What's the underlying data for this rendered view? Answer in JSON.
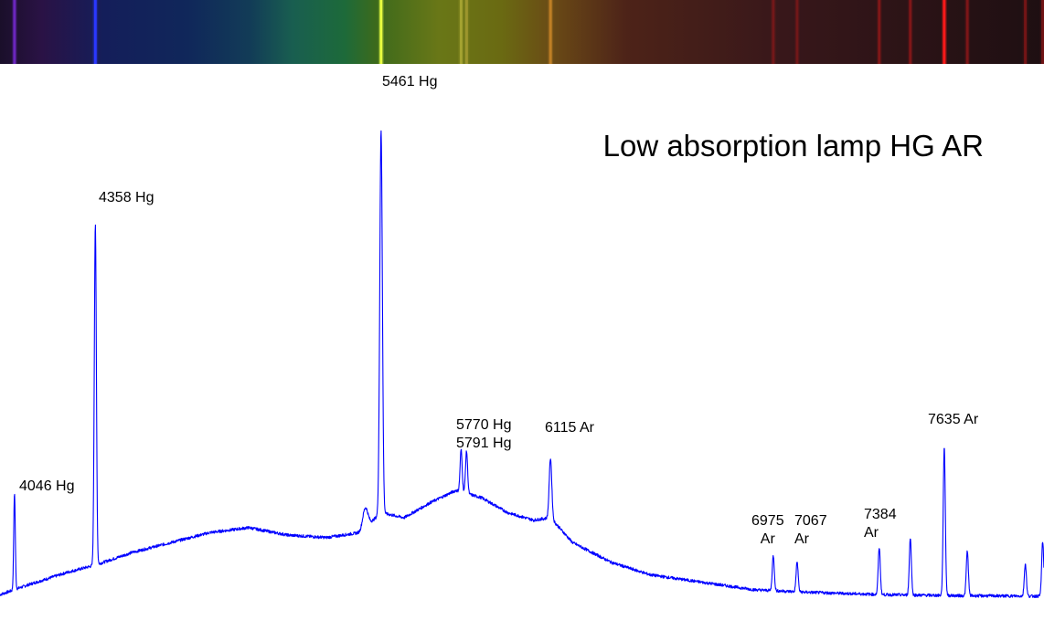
{
  "spectrum_strip": {
    "gradient_stops": [
      {
        "position": 0.0,
        "color": "#1a0f2a"
      },
      {
        "position": 0.04,
        "color": "#2a1245"
      },
      {
        "position": 0.1,
        "color": "#141e5a"
      },
      {
        "position": 0.18,
        "color": "#10275a"
      },
      {
        "position": 0.24,
        "color": "#123c57"
      },
      {
        "position": 0.28,
        "color": "#195e50"
      },
      {
        "position": 0.33,
        "color": "#1d6a3a"
      },
      {
        "position": 0.36,
        "color": "#3c6a1c"
      },
      {
        "position": 0.42,
        "color": "#697717"
      },
      {
        "position": 0.48,
        "color": "#6a6a12"
      },
      {
        "position": 0.53,
        "color": "#6a4a16"
      },
      {
        "position": 0.6,
        "color": "#4d2318"
      },
      {
        "position": 0.75,
        "color": "#38171a"
      },
      {
        "position": 1.0,
        "color": "#1e0f12"
      }
    ],
    "lines": [
      {
        "wavelength": 4046,
        "color": "#7a2bd8",
        "intensity": 0.8
      },
      {
        "wavelength": 4358,
        "color": "#2a38ff",
        "intensity": 1.0
      },
      {
        "wavelength": 5461,
        "color": "#e8ff40",
        "intensity": 1.0
      },
      {
        "wavelength": 5770,
        "color": "#b8b43a",
        "intensity": 0.7
      },
      {
        "wavelength": 5791,
        "color": "#b8a83a",
        "intensity": 0.6
      },
      {
        "wavelength": 6115,
        "color": "#d08a28",
        "intensity": 0.8
      },
      {
        "wavelength": 6975,
        "color": "#a81818",
        "intensity": 0.45
      },
      {
        "wavelength": 7067,
        "color": "#a81818",
        "intensity": 0.45
      },
      {
        "wavelength": 7384,
        "color": "#c01a1a",
        "intensity": 0.5
      },
      {
        "wavelength": 7504,
        "color": "#c01a1a",
        "intensity": 0.5
      },
      {
        "wavelength": 7635,
        "color": "#ff1a1a",
        "intensity": 1.0
      },
      {
        "wavelength": 7724,
        "color": "#c01a1a",
        "intensity": 0.5
      },
      {
        "wavelength": 7948,
        "color": "#c01a1a",
        "intensity": 0.45
      },
      {
        "wavelength": 8015,
        "color": "#c01a1a",
        "intensity": 0.45
      }
    ]
  },
  "chart_data": {
    "type": "line",
    "title": "Low absorption lamp HG AR",
    "xlabel": "",
    "ylabel": "",
    "xlim": [
      3990,
      8020
    ],
    "ylim": [
      0,
      1.0
    ],
    "grid": false,
    "line_color": "#0000ff",
    "series": [
      {
        "continuum": [
          [
            3990,
            0.005
          ],
          [
            4100,
            0.025
          ],
          [
            4250,
            0.05
          ],
          [
            4360,
            0.065
          ],
          [
            4500,
            0.09
          ],
          [
            4650,
            0.11
          ],
          [
            4800,
            0.13
          ],
          [
            4950,
            0.14
          ],
          [
            5100,
            0.125
          ],
          [
            5250,
            0.12
          ],
          [
            5380,
            0.13
          ],
          [
            5461,
            0.17
          ],
          [
            5550,
            0.16
          ],
          [
            5650,
            0.19
          ],
          [
            5750,
            0.215
          ],
          [
            5850,
            0.2
          ],
          [
            5950,
            0.17
          ],
          [
            6050,
            0.155
          ],
          [
            6115,
            0.16
          ],
          [
            6200,
            0.11
          ],
          [
            6350,
            0.07
          ],
          [
            6500,
            0.045
          ],
          [
            6700,
            0.03
          ],
          [
            6900,
            0.015
          ],
          [
            7100,
            0.01
          ],
          [
            7400,
            0.005
          ],
          [
            7700,
            0.003
          ],
          [
            8020,
            0.002
          ]
        ],
        "peaks": [
          {
            "wavelength": 4046,
            "height": 0.195,
            "width": 3
          },
          {
            "wavelength": 4358,
            "height": 0.685,
            "width": 4
          },
          {
            "wavelength": 5400,
            "height": 0.04,
            "width": 10
          },
          {
            "wavelength": 5461,
            "height": 0.77,
            "width": 5
          },
          {
            "wavelength": 5770,
            "height": 0.085,
            "width": 4
          },
          {
            "wavelength": 5791,
            "height": 0.085,
            "width": 4
          },
          {
            "wavelength": 6115,
            "height": 0.12,
            "width": 5
          },
          {
            "wavelength": 6975,
            "height": 0.07,
            "width": 4
          },
          {
            "wavelength": 7067,
            "height": 0.06,
            "width": 4
          },
          {
            "wavelength": 7384,
            "height": 0.095,
            "width": 4
          },
          {
            "wavelength": 7504,
            "height": 0.115,
            "width": 4
          },
          {
            "wavelength": 7635,
            "height": 0.3,
            "width": 4
          },
          {
            "wavelength": 7724,
            "height": 0.09,
            "width": 4
          },
          {
            "wavelength": 7948,
            "height": 0.065,
            "width": 4
          },
          {
            "wavelength": 8015,
            "height": 0.11,
            "width": 4
          }
        ]
      }
    ],
    "annotations": [
      {
        "id": "4046",
        "lines": [
          "4046 Hg"
        ],
        "wavelength": 4046
      },
      {
        "id": "4358",
        "lines": [
          "4358 Hg"
        ],
        "wavelength": 4358
      },
      {
        "id": "5461",
        "lines": [
          "5461 Hg"
        ],
        "wavelength": 5461
      },
      {
        "id": "5770-5791",
        "lines": [
          "5770 Hg",
          "5791 Hg"
        ],
        "wavelength": 5780
      },
      {
        "id": "6115",
        "lines": [
          "6115 Ar"
        ],
        "wavelength": 6115
      },
      {
        "id": "6975",
        "lines": [
          "6975",
          "Ar"
        ],
        "wavelength": 6975
      },
      {
        "id": "7067",
        "lines": [
          "7067",
          "Ar"
        ],
        "wavelength": 7067
      },
      {
        "id": "7384",
        "lines": [
          "7384",
          "Ar"
        ],
        "wavelength": 7384
      },
      {
        "id": "7635",
        "lines": [
          "7635 Ar"
        ],
        "wavelength": 7635
      }
    ]
  }
}
